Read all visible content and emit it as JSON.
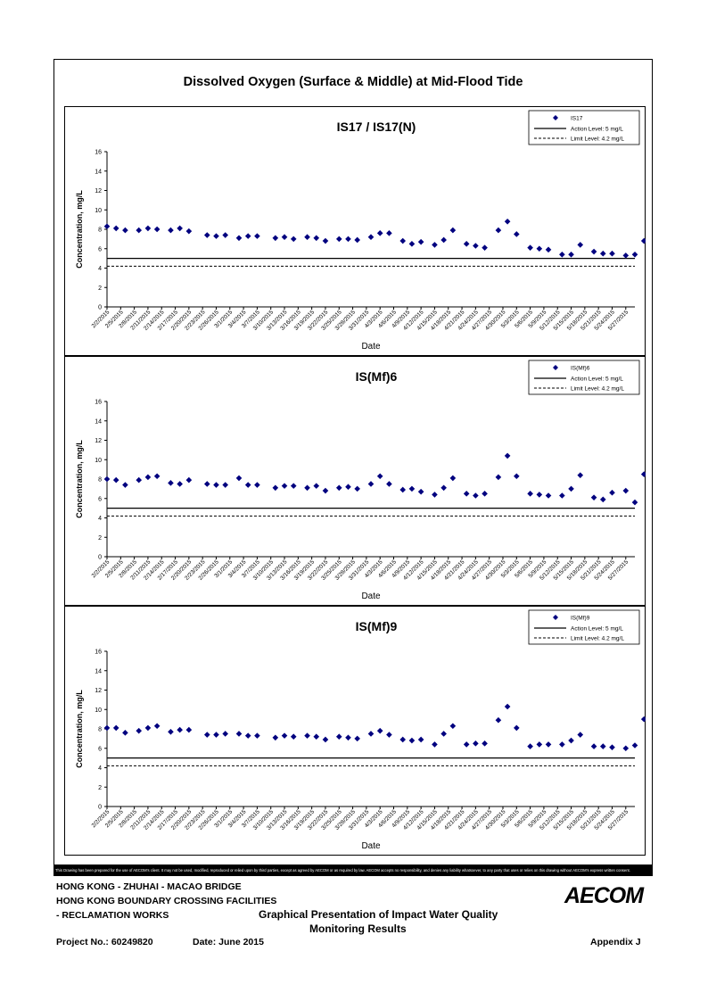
{
  "page": {
    "main_title": "Dissolved Oxygen (Surface & Middle) at Mid-Flood Tide",
    "disclaimer": "This Drawing has been prepared for the use of AECOM's client. It may not be used, modified, reproduced or relied upon by third parties, except as agreed by AECOM or as required by law. AECOM accepts no responsibility, and denies any liability whatsoever, to any party that uses or relies on this drawing without AECOM's express written consent."
  },
  "footer": {
    "line1": "HONG KONG - ZHUHAI - MACAO BRIDGE",
    "line2": "HONG KONG BOUNDARY CROSSING FACILITIES",
    "line3": "- RECLAMATION WORKS",
    "title1": "Graphical Presentation of Impact Water Quality",
    "title2": "Monitoring Results",
    "project": "Project No.: 60249820",
    "date": "Date: June 2015",
    "appendix": "Appendix J",
    "logo": "AECOM"
  },
  "colors": {
    "marker": "#00007f",
    "line": "#000000"
  },
  "chart_data": [
    {
      "type": "scatter",
      "title": "IS17 / IS17(N)",
      "xlabel": "Date",
      "ylabel": "Concentration, mg/L",
      "ylim": [
        0,
        16
      ],
      "yticks": [
        0,
        2,
        4,
        6,
        8,
        10,
        12,
        14,
        16
      ],
      "grid": false,
      "legend_position": "top-right",
      "xlim": [
        "2/2/2015",
        "5/29/2015"
      ],
      "xticks": [
        "2/2/2015",
        "2/5/2015",
        "2/8/2015",
        "2/11/2015",
        "2/14/2015",
        "2/17/2015",
        "2/20/2015",
        "2/23/2015",
        "2/26/2015",
        "3/1/2015",
        "3/4/2015",
        "3/7/2015",
        "3/10/2015",
        "3/13/2015",
        "3/16/2015",
        "3/19/2015",
        "3/22/2015",
        "3/25/2015",
        "3/28/2015",
        "3/31/2015",
        "4/3/2015",
        "4/6/2015",
        "4/9/2015",
        "4/12/2015",
        "4/15/2015",
        "4/18/2015",
        "4/21/2015",
        "4/24/2015",
        "4/27/2015",
        "4/30/2015",
        "5/3/2015",
        "5/6/2015",
        "5/9/2015",
        "5/12/2015",
        "5/15/2015",
        "5/18/2015",
        "5/21/2015",
        "5/24/2015",
        "5/27/2015"
      ],
      "series": [
        {
          "name": "IS17",
          "x": [
            "2/2/2015",
            "2/4/2015",
            "2/6/2015",
            "2/9/2015",
            "2/11/2015",
            "2/13/2015",
            "2/16/2015",
            "2/18/2015",
            "2/20/2015",
            "2/24/2015",
            "2/26/2015",
            "2/28/2015",
            "3/3/2015",
            "3/5/2015",
            "3/7/2015",
            "3/11/2015",
            "3/13/2015",
            "3/15/2015",
            "3/18/2015",
            "3/20/2015",
            "3/22/2015",
            "3/25/2015",
            "3/27/2015",
            "3/29/2015",
            "4/1/2015",
            "4/3/2015",
            "4/5/2015",
            "4/8/2015",
            "4/10/2015",
            "4/12/2015",
            "4/15/2015",
            "4/17/2015",
            "4/19/2015",
            "4/22/2015",
            "4/24/2015",
            "4/26/2015",
            "4/29/2015",
            "5/1/2015",
            "5/3/2015",
            "5/6/2015",
            "5/8/2015",
            "5/10/2015",
            "5/13/2015",
            "5/15/2015",
            "5/17/2015",
            "5/20/2015",
            "5/22/2015",
            "5/24/2015",
            "5/27/2015",
            "5/29/2015",
            "5/31/2015"
          ],
          "y": [
            8.3,
            8.1,
            7.9,
            7.9,
            8.1,
            8.0,
            7.9,
            8.1,
            7.8,
            7.4,
            7.3,
            7.4,
            7.1,
            7.3,
            7.3,
            7.1,
            7.2,
            7.0,
            7.2,
            7.1,
            6.8,
            7.0,
            7.0,
            6.9,
            7.2,
            7.6,
            7.6,
            6.8,
            6.5,
            6.7,
            6.4,
            6.9,
            7.9,
            6.5,
            6.3,
            6.1,
            7.9,
            8.8,
            7.5,
            6.1,
            6.0,
            5.9,
            5.4,
            5.4,
            6.4,
            5.7,
            5.5,
            5.5,
            5.3,
            5.4,
            6.8
          ]
        },
        {
          "name": "Action Level: 5 mg/L",
          "value": 5
        },
        {
          "name": "Limit Level: 4.2 mg/L",
          "value": 4.2
        }
      ]
    },
    {
      "type": "scatter",
      "title": "IS(Mf)6",
      "xlabel": "Date",
      "ylabel": "Concentration, mg/L",
      "ylim": [
        0,
        16
      ],
      "yticks": [
        0,
        2,
        4,
        6,
        8,
        10,
        12,
        14,
        16
      ],
      "grid": false,
      "legend_position": "top-right",
      "xlim": [
        "2/2/2015",
        "5/29/2015"
      ],
      "xticks": [
        "2/2/2015",
        "2/5/2015",
        "2/8/2015",
        "2/11/2015",
        "2/14/2015",
        "2/17/2015",
        "2/20/2015",
        "2/23/2015",
        "2/26/2015",
        "3/1/2015",
        "3/4/2015",
        "3/7/2015",
        "3/10/2015",
        "3/13/2015",
        "3/16/2015",
        "3/19/2015",
        "3/22/2015",
        "3/25/2015",
        "3/28/2015",
        "3/31/2015",
        "4/3/2015",
        "4/6/2015",
        "4/9/2015",
        "4/12/2015",
        "4/15/2015",
        "4/18/2015",
        "4/21/2015",
        "4/24/2015",
        "4/27/2015",
        "4/30/2015",
        "5/3/2015",
        "5/6/2015",
        "5/9/2015",
        "5/12/2015",
        "5/15/2015",
        "5/18/2015",
        "5/21/2015",
        "5/24/2015",
        "5/27/2015"
      ],
      "series": [
        {
          "name": "IS(Mf)6",
          "x": [
            "2/2/2015",
            "2/4/2015",
            "2/6/2015",
            "2/9/2015",
            "2/11/2015",
            "2/13/2015",
            "2/16/2015",
            "2/18/2015",
            "2/20/2015",
            "2/24/2015",
            "2/26/2015",
            "2/28/2015",
            "3/3/2015",
            "3/5/2015",
            "3/7/2015",
            "3/11/2015",
            "3/13/2015",
            "3/15/2015",
            "3/18/2015",
            "3/20/2015",
            "3/22/2015",
            "3/25/2015",
            "3/27/2015",
            "3/29/2015",
            "4/1/2015",
            "4/3/2015",
            "4/5/2015",
            "4/8/2015",
            "4/10/2015",
            "4/12/2015",
            "4/15/2015",
            "4/17/2015",
            "4/19/2015",
            "4/22/2015",
            "4/24/2015",
            "4/26/2015",
            "4/29/2015",
            "5/1/2015",
            "5/3/2015",
            "5/6/2015",
            "5/8/2015",
            "5/10/2015",
            "5/13/2015",
            "5/15/2015",
            "5/17/2015",
            "5/20/2015",
            "5/22/2015",
            "5/24/2015",
            "5/27/2015",
            "5/29/2015",
            "5/31/2015"
          ],
          "y": [
            8.0,
            7.9,
            7.4,
            7.9,
            8.2,
            8.3,
            7.6,
            7.5,
            7.9,
            7.5,
            7.4,
            7.4,
            8.1,
            7.4,
            7.4,
            7.1,
            7.3,
            7.3,
            7.1,
            7.3,
            6.8,
            7.1,
            7.2,
            7.0,
            7.5,
            8.3,
            7.5,
            6.9,
            7.0,
            6.7,
            6.4,
            7.1,
            8.1,
            6.5,
            6.3,
            6.5,
            8.2,
            10.4,
            8.3,
            6.5,
            6.4,
            6.3,
            6.3,
            7.0,
            8.4,
            6.1,
            5.9,
            6.6,
            6.8,
            5.6,
            8.5
          ]
        },
        {
          "name": "Action Level: 5 mg/L",
          "value": 5
        },
        {
          "name": "Limit Level: 4.2 mg/L",
          "value": 4.2
        }
      ]
    },
    {
      "type": "scatter",
      "title": "IS(Mf)9",
      "xlabel": "Date",
      "ylabel": "Concentration, mg/L",
      "ylim": [
        0,
        16
      ],
      "yticks": [
        0,
        2,
        4,
        6,
        8,
        10,
        12,
        14,
        16
      ],
      "grid": false,
      "legend_position": "top-right",
      "xlim": [
        "2/2/2015",
        "5/29/2015"
      ],
      "xticks": [
        "2/2/2015",
        "2/5/2015",
        "2/8/2015",
        "2/11/2015",
        "2/14/2015",
        "2/17/2015",
        "2/20/2015",
        "2/23/2015",
        "2/26/2015",
        "3/1/2015",
        "3/4/2015",
        "3/7/2015",
        "3/10/2015",
        "3/13/2015",
        "3/16/2015",
        "3/19/2015",
        "3/22/2015",
        "3/25/2015",
        "3/28/2015",
        "3/31/2015",
        "4/3/2015",
        "4/6/2015",
        "4/9/2015",
        "4/12/2015",
        "4/15/2015",
        "4/18/2015",
        "4/21/2015",
        "4/24/2015",
        "4/27/2015",
        "4/30/2015",
        "5/3/2015",
        "5/6/2015",
        "5/9/2015",
        "5/12/2015",
        "5/15/2015",
        "5/18/2015",
        "5/21/2015",
        "5/24/2015",
        "5/27/2015"
      ],
      "series": [
        {
          "name": "IS(Mf)9",
          "x": [
            "2/2/2015",
            "2/4/2015",
            "2/6/2015",
            "2/9/2015",
            "2/11/2015",
            "2/13/2015",
            "2/16/2015",
            "2/18/2015",
            "2/20/2015",
            "2/24/2015",
            "2/26/2015",
            "2/28/2015",
            "3/3/2015",
            "3/5/2015",
            "3/7/2015",
            "3/11/2015",
            "3/13/2015",
            "3/15/2015",
            "3/18/2015",
            "3/20/2015",
            "3/22/2015",
            "3/25/2015",
            "3/27/2015",
            "3/29/2015",
            "4/1/2015",
            "4/3/2015",
            "4/5/2015",
            "4/8/2015",
            "4/10/2015",
            "4/12/2015",
            "4/15/2015",
            "4/17/2015",
            "4/19/2015",
            "4/22/2015",
            "4/24/2015",
            "4/26/2015",
            "4/29/2015",
            "5/1/2015",
            "5/3/2015",
            "5/6/2015",
            "5/8/2015",
            "5/10/2015",
            "5/13/2015",
            "5/15/2015",
            "5/17/2015",
            "5/20/2015",
            "5/22/2015",
            "5/24/2015",
            "5/27/2015",
            "5/29/2015",
            "5/31/2015"
          ],
          "y": [
            8.1,
            8.1,
            7.6,
            7.8,
            8.1,
            8.3,
            7.7,
            7.9,
            7.9,
            7.4,
            7.4,
            7.5,
            7.5,
            7.3,
            7.3,
            7.1,
            7.3,
            7.2,
            7.3,
            7.2,
            6.9,
            7.2,
            7.1,
            7.0,
            7.5,
            7.8,
            7.4,
            6.9,
            6.8,
            6.9,
            6.4,
            7.5,
            8.3,
            6.4,
            6.5,
            6.5,
            8.9,
            10.3,
            8.1,
            6.2,
            6.4,
            6.4,
            6.4,
            6.8,
            7.4,
            6.2,
            6.2,
            6.1,
            6.0,
            6.3,
            9.0
          ]
        },
        {
          "name": "Action Level: 5 mg/L",
          "value": 5
        },
        {
          "name": "Limit Level: 4.2 mg/L",
          "value": 4.2
        }
      ]
    }
  ]
}
